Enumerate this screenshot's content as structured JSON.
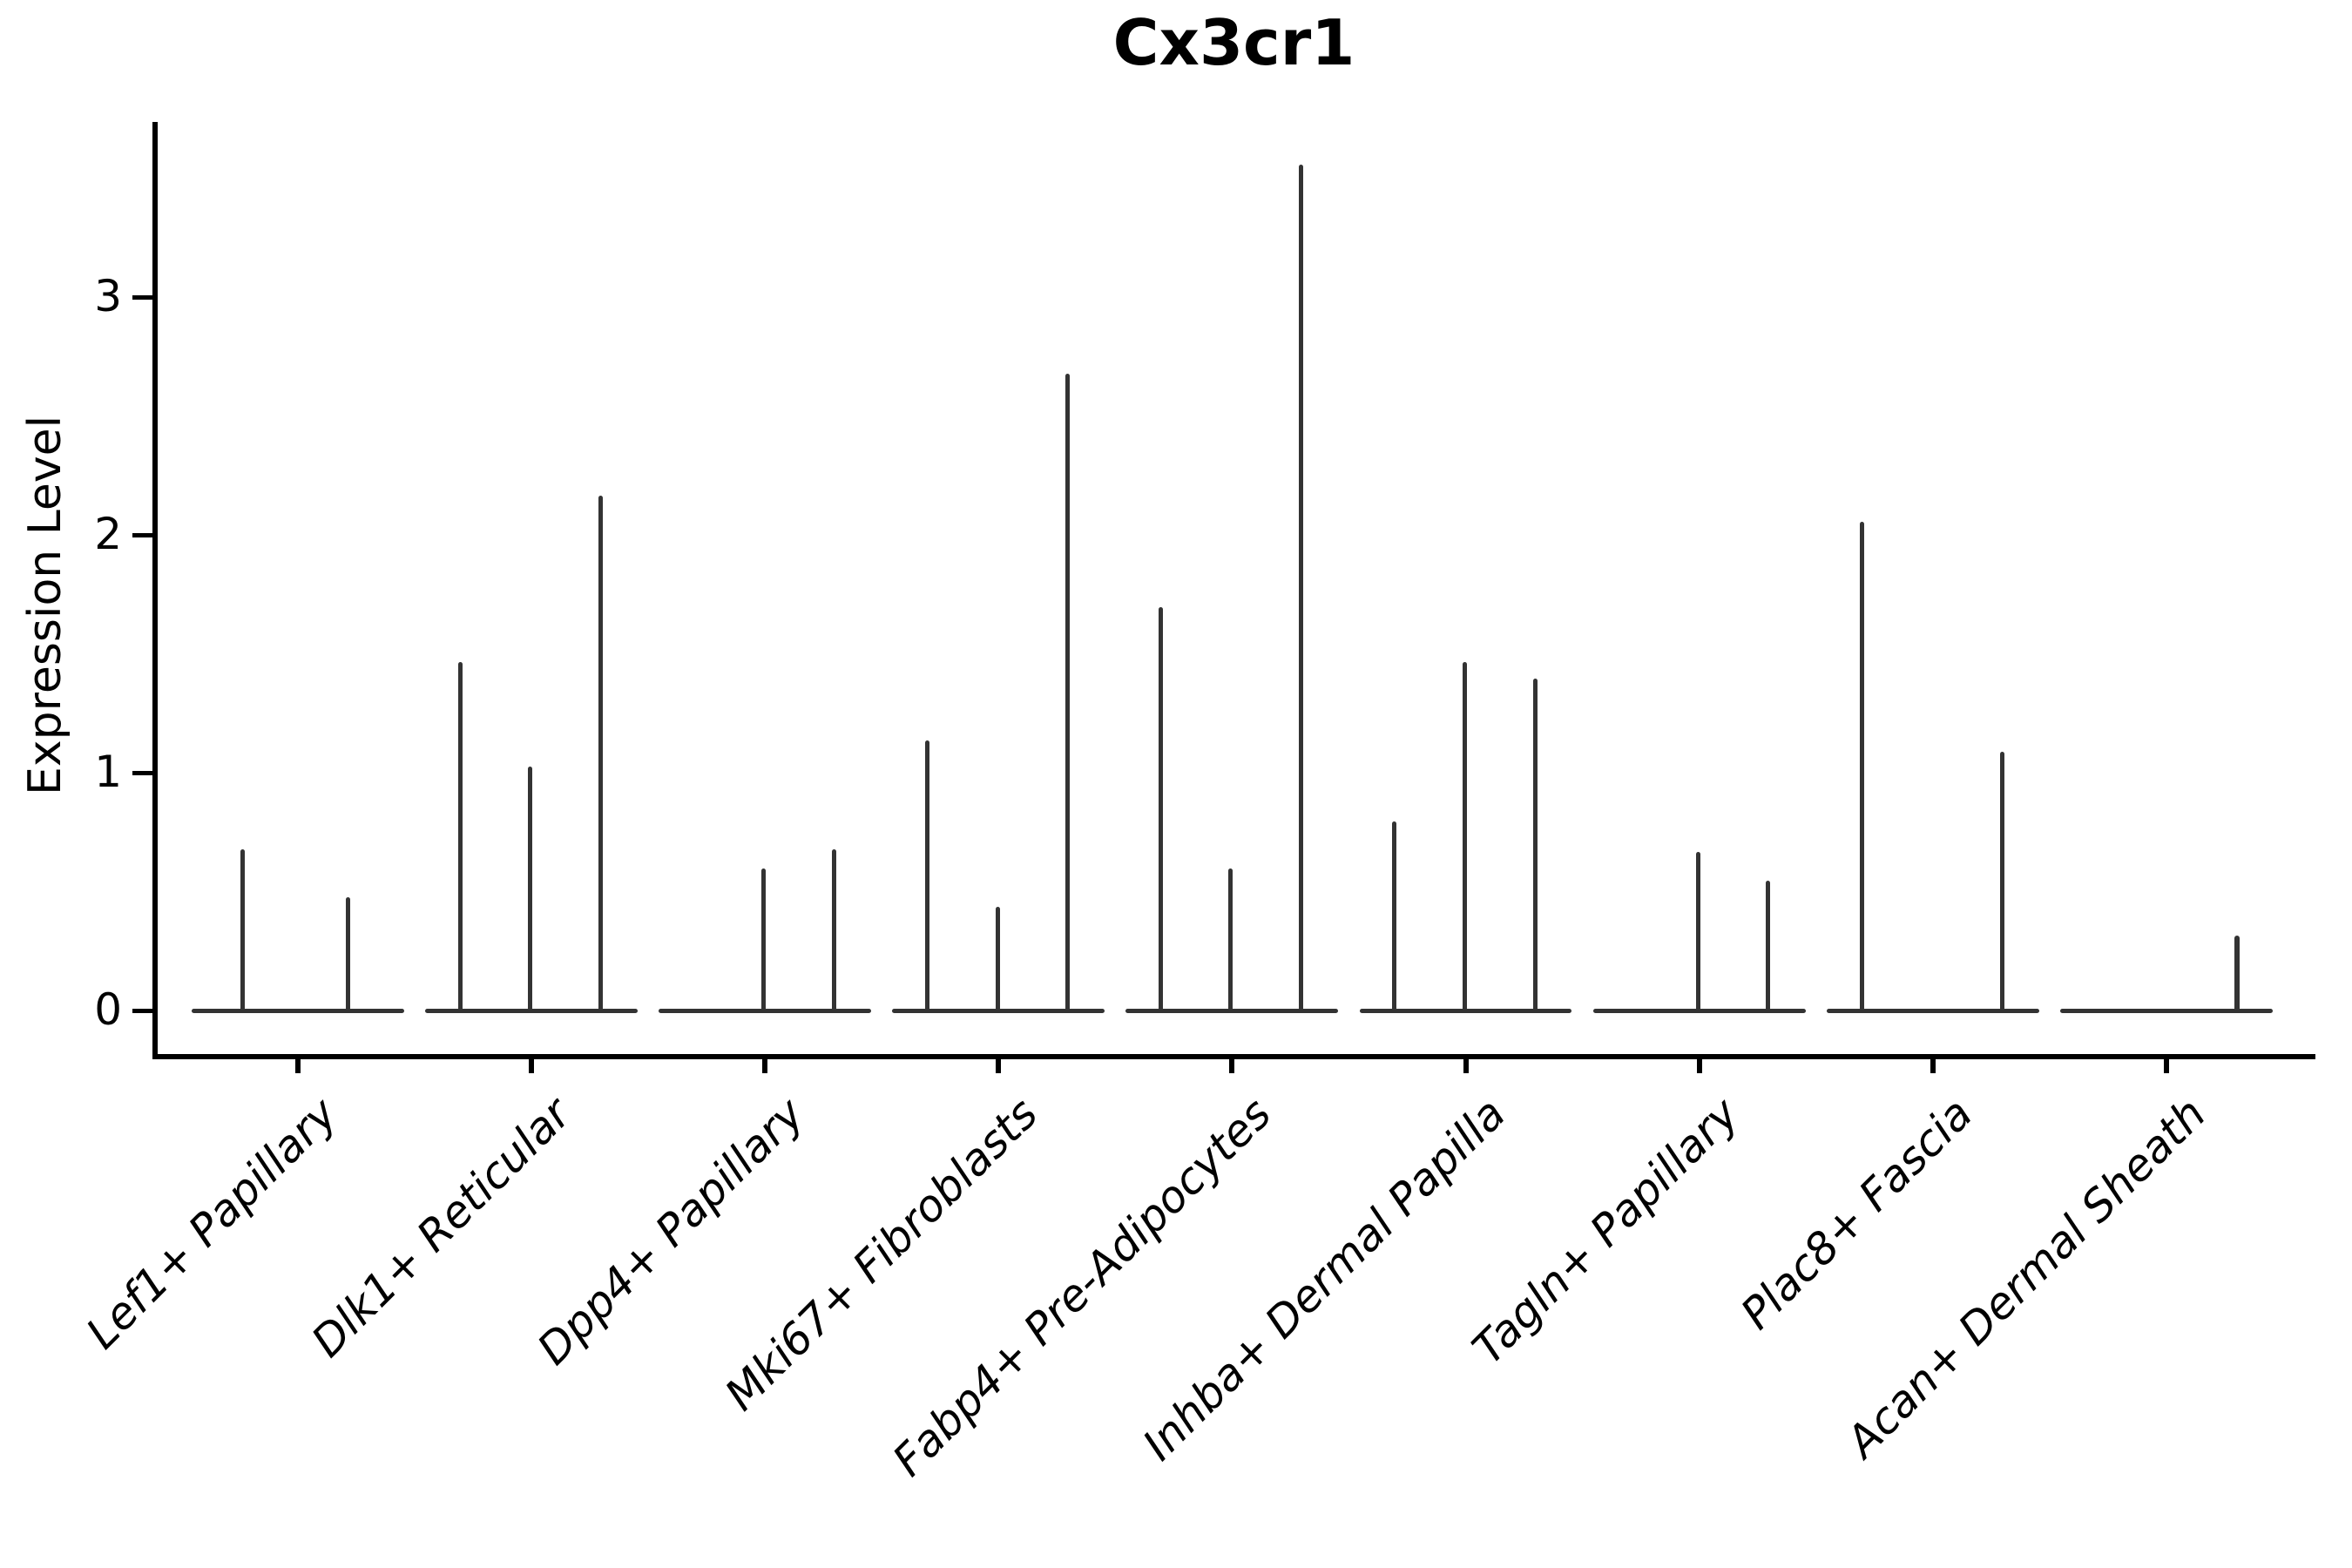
{
  "title": "Cx3cr1",
  "chart_data": {
    "type": "violin",
    "title": "Cx3cr1",
    "ylabel": "Expression Level",
    "xlabel": "",
    "grid": false,
    "legend": "none",
    "yticks": [
      0,
      1,
      2,
      3
    ],
    "ylim": [
      -0.18,
      3.74
    ],
    "baseline_value": 0,
    "violin_half_width": 0.455,
    "violin_color": "#333333",
    "axis_color": "#000000",
    "background_color": "#ffffff",
    "categories": [
      "Lef1+ Papillary",
      "Dlk1+ Reticular",
      "Dpp4+ Papillary",
      "Mki67+ Fibroblasts",
      "Fabp4+ Pre-Adipocytes",
      "Inhba+ Dermal Papilla",
      "Tagln+ Papillary",
      "Plac8+ Fascia",
      "Acan+ Dermal Sheath"
    ],
    "series": [
      {
        "category": "Lef1+ Papillary",
        "spikes": [
          {
            "offset": -0.235,
            "value": 0.68
          },
          {
            "offset": 0.216,
            "value": 0.48
          }
        ]
      },
      {
        "category": "Dlk1+ Reticular",
        "spikes": [
          {
            "offset": -0.306,
            "value": 1.47
          },
          {
            "offset": -0.007,
            "value": 1.03
          },
          {
            "offset": 0.295,
            "value": 2.17
          }
        ]
      },
      {
        "category": "Dpp4+ Papillary",
        "spikes": [
          {
            "offset": -0.007,
            "value": 0.6
          },
          {
            "offset": 0.295,
            "value": 0.68
          }
        ]
      },
      {
        "category": "Mki67+ Fibroblasts",
        "spikes": [
          {
            "offset": -0.306,
            "value": 1.14
          },
          {
            "offset": -0.004,
            "value": 0.44
          },
          {
            "offset": 0.295,
            "value": 2.68
          }
        ]
      },
      {
        "category": "Fabp4+ Pre-Adipocytes",
        "spikes": [
          {
            "offset": -0.306,
            "value": 1.7
          },
          {
            "offset": -0.007,
            "value": 0.6
          },
          {
            "offset": 0.295,
            "value": 3.56
          }
        ]
      },
      {
        "category": "Inhba+ Dermal Papilla",
        "spikes": [
          {
            "offset": -0.306,
            "value": 0.8
          },
          {
            "offset": -0.004,
            "value": 1.47
          },
          {
            "offset": 0.298,
            "value": 1.4
          }
        ]
      },
      {
        "category": "Tagln+ Papillary",
        "spikes": [
          {
            "offset": -0.004,
            "value": 0.67
          },
          {
            "offset": 0.295,
            "value": 0.55
          }
        ]
      },
      {
        "category": "Plac8+ Fascia",
        "spikes": [
          {
            "offset": -0.302,
            "value": 2.06
          },
          {
            "offset": 0.298,
            "value": 1.09
          }
        ]
      },
      {
        "category": "Acan+ Dermal Sheath",
        "spikes": [
          {
            "offset": 0.302,
            "value": 0.32,
            "w": 6
          }
        ]
      }
    ]
  }
}
